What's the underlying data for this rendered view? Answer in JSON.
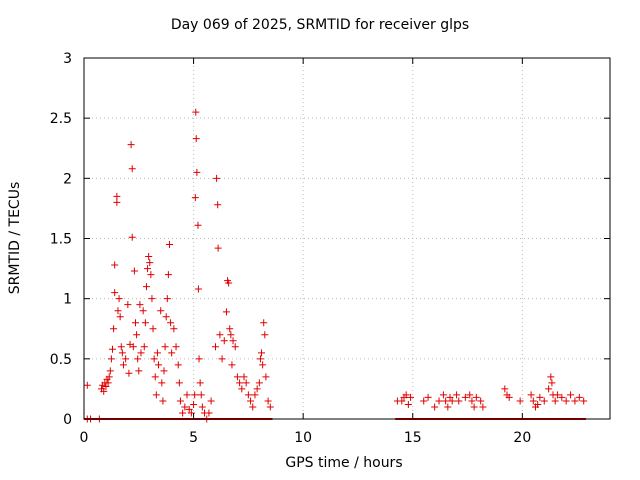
{
  "chart_data": {
    "type": "scatter",
    "title": "Day 069 of 2025, SRMTID for receiver glps",
    "xlabel": "GPS time / hours",
    "ylabel": "SRMTID / TECUs",
    "xlim": [
      0,
      24
    ],
    "ylim": [
      0,
      3
    ],
    "xticks": [
      0,
      5,
      10,
      15,
      20
    ],
    "yticks": [
      0,
      0.5,
      1,
      1.5,
      2,
      2.5,
      3
    ],
    "grid": true,
    "marker": "+",
    "series_color": "#e00000",
    "series": [
      {
        "name": "SRMTID",
        "points": [
          [
            0.15,
            0.28
          ],
          [
            0.15,
            0.0
          ],
          [
            0.3,
            0.0
          ],
          [
            0.7,
            0.0
          ],
          [
            0.8,
            0.25
          ],
          [
            0.85,
            0.28
          ],
          [
            0.9,
            0.23
          ],
          [
            0.95,
            0.3
          ],
          [
            1.0,
            0.27
          ],
          [
            1.05,
            0.33
          ],
          [
            1.1,
            0.3
          ],
          [
            1.15,
            0.35
          ],
          [
            1.2,
            0.4
          ],
          [
            1.25,
            0.5
          ],
          [
            1.3,
            0.58
          ],
          [
            1.35,
            0.75
          ],
          [
            1.4,
            1.05
          ],
          [
            1.4,
            1.28
          ],
          [
            1.5,
            1.8
          ],
          [
            1.5,
            1.85
          ],
          [
            1.55,
            0.9
          ],
          [
            1.6,
            1.0
          ],
          [
            1.65,
            0.85
          ],
          [
            1.7,
            0.6
          ],
          [
            1.75,
            0.55
          ],
          [
            1.8,
            0.45
          ],
          [
            1.9,
            0.5
          ],
          [
            2.0,
            0.95
          ],
          [
            2.05,
            0.38
          ],
          [
            2.1,
            0.62
          ],
          [
            2.15,
            2.28
          ],
          [
            2.2,
            2.08
          ],
          [
            2.2,
            1.51
          ],
          [
            2.25,
            0.6
          ],
          [
            2.3,
            1.23
          ],
          [
            2.35,
            0.8
          ],
          [
            2.4,
            0.7
          ],
          [
            2.45,
            0.5
          ],
          [
            2.5,
            0.4
          ],
          [
            2.55,
            0.95
          ],
          [
            2.6,
            0.55
          ],
          [
            2.7,
            0.9
          ],
          [
            2.75,
            0.6
          ],
          [
            2.8,
            0.8
          ],
          [
            2.85,
            1.1
          ],
          [
            2.9,
            1.25
          ],
          [
            2.95,
            1.35
          ],
          [
            3.0,
            1.3
          ],
          [
            3.05,
            1.2
          ],
          [
            3.1,
            1.0
          ],
          [
            3.15,
            0.75
          ],
          [
            3.2,
            0.5
          ],
          [
            3.25,
            0.35
          ],
          [
            3.3,
            0.2
          ],
          [
            3.35,
            0.55
          ],
          [
            3.4,
            0.45
          ],
          [
            3.5,
            0.9
          ],
          [
            3.55,
            0.3
          ],
          [
            3.6,
            0.15
          ],
          [
            3.65,
            0.4
          ],
          [
            3.7,
            0.6
          ],
          [
            3.75,
            0.85
          ],
          [
            3.8,
            1.0
          ],
          [
            3.85,
            1.2
          ],
          [
            3.9,
            1.45
          ],
          [
            3.95,
            0.8
          ],
          [
            4.0,
            0.55
          ],
          [
            4.1,
            0.75
          ],
          [
            4.2,
            0.6
          ],
          [
            4.3,
            0.45
          ],
          [
            4.35,
            0.3
          ],
          [
            4.4,
            0.15
          ],
          [
            4.5,
            0.05
          ],
          [
            4.6,
            0.1
          ],
          [
            4.7,
            0.2
          ],
          [
            4.8,
            0.08
          ],
          [
            4.9,
            0.05
          ],
          [
            5.0,
            0.12
          ],
          [
            5.05,
            0.2
          ],
          [
            5.08,
            1.84
          ],
          [
            5.1,
            2.55
          ],
          [
            5.12,
            2.33
          ],
          [
            5.15,
            2.05
          ],
          [
            5.2,
            1.61
          ],
          [
            5.22,
            1.08
          ],
          [
            5.25,
            0.5
          ],
          [
            5.3,
            0.3
          ],
          [
            5.35,
            0.2
          ],
          [
            5.4,
            0.1
          ],
          [
            5.5,
            0.05
          ],
          [
            5.6,
            0.0
          ],
          [
            5.7,
            0.05
          ],
          [
            5.8,
            0.15
          ],
          [
            6.0,
            0.6
          ],
          [
            6.05,
            2.0
          ],
          [
            6.1,
            1.78
          ],
          [
            6.12,
            1.42
          ],
          [
            6.2,
            0.7
          ],
          [
            6.3,
            0.5
          ],
          [
            6.4,
            0.65
          ],
          [
            6.5,
            0.89
          ],
          [
            6.55,
            1.15
          ],
          [
            6.6,
            1.13
          ],
          [
            6.65,
            0.75
          ],
          [
            6.7,
            0.7
          ],
          [
            6.75,
            0.45
          ],
          [
            6.8,
            0.65
          ],
          [
            6.9,
            0.6
          ],
          [
            7.0,
            0.35
          ],
          [
            7.1,
            0.3
          ],
          [
            7.2,
            0.25
          ],
          [
            7.3,
            0.35
          ],
          [
            7.4,
            0.3
          ],
          [
            7.5,
            0.2
          ],
          [
            7.6,
            0.15
          ],
          [
            7.7,
            0.1
          ],
          [
            7.8,
            0.2
          ],
          [
            7.9,
            0.25
          ],
          [
            8.0,
            0.3
          ],
          [
            8.05,
            0.5
          ],
          [
            8.1,
            0.55
          ],
          [
            8.15,
            0.45
          ],
          [
            8.2,
            0.8
          ],
          [
            8.25,
            0.7
          ],
          [
            8.3,
            0.35
          ],
          [
            8.4,
            0.15
          ],
          [
            8.5,
            0.1
          ],
          [
            14.3,
            0.15
          ],
          [
            14.5,
            0.15
          ],
          [
            14.6,
            0.18
          ],
          [
            14.7,
            0.2
          ],
          [
            14.8,
            0.12
          ],
          [
            14.9,
            0.18
          ],
          [
            15.5,
            0.15
          ],
          [
            15.7,
            0.18
          ],
          [
            16.0,
            0.1
          ],
          [
            16.2,
            0.15
          ],
          [
            16.4,
            0.2
          ],
          [
            16.5,
            0.15
          ],
          [
            16.6,
            0.1
          ],
          [
            16.7,
            0.18
          ],
          [
            16.8,
            0.15
          ],
          [
            17.0,
            0.2
          ],
          [
            17.1,
            0.15
          ],
          [
            17.4,
            0.18
          ],
          [
            17.6,
            0.2
          ],
          [
            17.7,
            0.15
          ],
          [
            17.8,
            0.1
          ],
          [
            17.9,
            0.18
          ],
          [
            18.1,
            0.15
          ],
          [
            18.2,
            0.1
          ],
          [
            19.2,
            0.25
          ],
          [
            19.3,
            0.2
          ],
          [
            19.4,
            0.18
          ],
          [
            19.9,
            0.15
          ],
          [
            20.4,
            0.2
          ],
          [
            20.5,
            0.15
          ],
          [
            20.6,
            0.1
          ],
          [
            20.7,
            0.12
          ],
          [
            20.8,
            0.18
          ],
          [
            21.0,
            0.15
          ],
          [
            21.2,
            0.25
          ],
          [
            21.3,
            0.35
          ],
          [
            21.35,
            0.3
          ],
          [
            21.4,
            0.2
          ],
          [
            21.5,
            0.15
          ],
          [
            21.6,
            0.2
          ],
          [
            21.8,
            0.18
          ],
          [
            22.0,
            0.15
          ],
          [
            22.2,
            0.2
          ],
          [
            22.4,
            0.15
          ],
          [
            22.6,
            0.18
          ],
          [
            22.8,
            0.15
          ]
        ]
      }
    ]
  }
}
